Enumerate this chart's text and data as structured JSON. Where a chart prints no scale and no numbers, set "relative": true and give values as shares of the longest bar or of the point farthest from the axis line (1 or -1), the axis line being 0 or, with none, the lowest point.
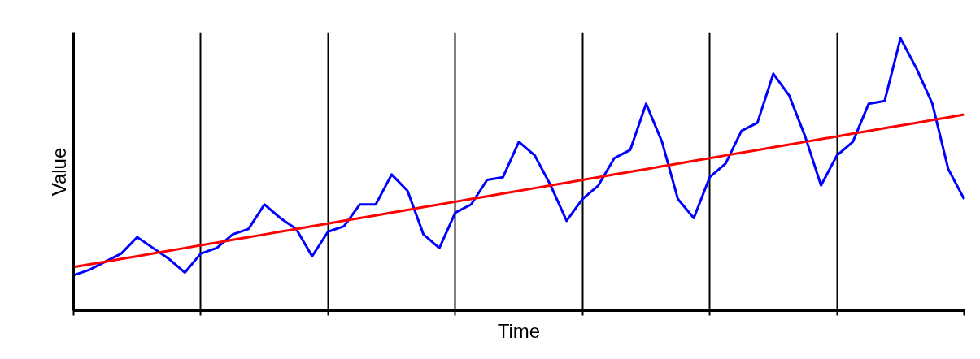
{
  "chart_data": {
    "type": "line",
    "relative": true,
    "xlabel": "Time",
    "ylabel": "Value",
    "categories": [
      null,
      null,
      null,
      null,
      null,
      null,
      null,
      null,
      null,
      null,
      null,
      null,
      null,
      null,
      null,
      null,
      null,
      null,
      null,
      null,
      null,
      null,
      null,
      null,
      null,
      null,
      null,
      null,
      null,
      null,
      null,
      null,
      null,
      null,
      null,
      null,
      null,
      null,
      null,
      null,
      null,
      null,
      null,
      null,
      null,
      null,
      null,
      null,
      null,
      null,
      null,
      null,
      null,
      null,
      null,
      null,
      null
    ],
    "grid": "x",
    "marker": "none",
    "line_style": "solid",
    "series": [
      {
        "color": "#0000ff",
        "values": [
          0.13,
          0.15,
          0.18,
          0.21,
          0.27,
          0.23,
          0.19,
          0.14,
          0.21,
          0.23,
          0.28,
          0.3,
          0.39,
          0.34,
          0.3,
          0.2,
          0.29,
          0.31,
          0.39,
          0.39,
          0.5,
          0.44,
          0.28,
          0.23,
          0.36,
          0.39,
          0.48,
          0.49,
          0.62,
          0.57,
          0.46,
          0.33,
          0.41,
          0.46,
          0.56,
          0.59,
          0.76,
          0.62,
          0.41,
          0.34,
          0.49,
          0.54,
          0.66,
          0.69,
          0.87,
          0.79,
          0.64,
          0.46,
          0.57,
          0.62,
          0.76,
          0.77,
          1.0,
          0.89,
          0.76,
          0.52,
          0.41
        ]
      },
      {
        "color": "#ff0000",
        "values": [
          0.16,
          0.17,
          0.18,
          0.19,
          0.2,
          0.21,
          0.22,
          0.23,
          0.24,
          0.25,
          0.26,
          0.27,
          0.28,
          0.29,
          0.3,
          0.31,
          0.32,
          0.33,
          0.34,
          0.35,
          0.36,
          0.37,
          0.38,
          0.39,
          0.4,
          0.41,
          0.42,
          0.43,
          0.44,
          0.45,
          0.46,
          0.47,
          0.48,
          0.49,
          0.5,
          0.51,
          0.52,
          0.53,
          0.54,
          0.55,
          0.56,
          0.57,
          0.58,
          0.59,
          0.6,
          0.61,
          0.62,
          0.63,
          0.64,
          0.65,
          0.66,
          0.67,
          0.68,
          0.69,
          0.7,
          0.71,
          0.72
        ]
      }
    ]
  }
}
